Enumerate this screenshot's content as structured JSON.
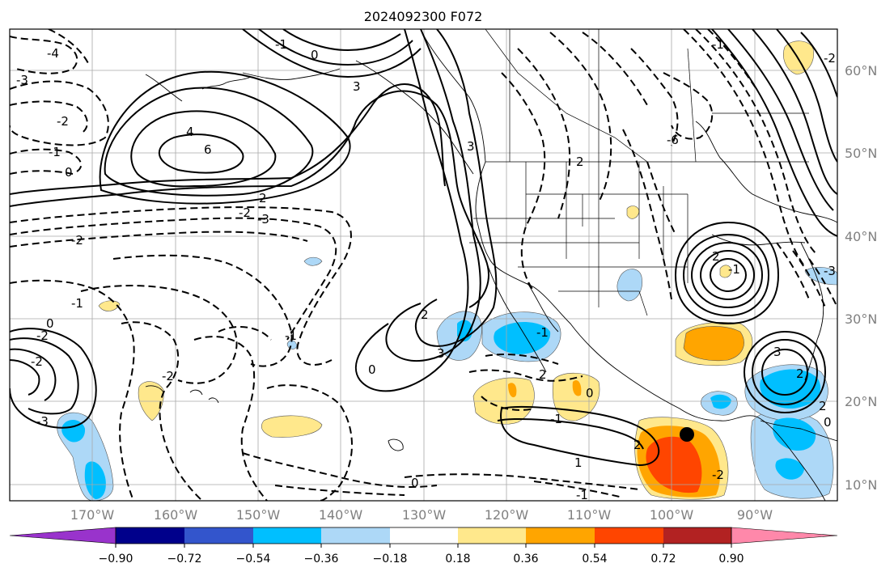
{
  "title": "2024092300 F072",
  "map": {
    "lat_labels": [
      "60°N",
      "50°N",
      "40°N",
      "30°N",
      "20°N",
      "10°N"
    ],
    "lon_labels": [
      "170°W",
      "160°W",
      "150°W",
      "140°W",
      "130°W",
      "120°W",
      "110°W",
      "100°W",
      "90°W"
    ],
    "gridline_color": "#a9a9a9",
    "coastline_color": "#000000",
    "contour_color": "#000000",
    "contour_labels": [
      "-4",
      "-3",
      "-2",
      "-1",
      "0",
      "0",
      "-1",
      "3",
      "4",
      "6",
      "-2",
      "2",
      "-2",
      "-3",
      "-2",
      "-1",
      "0",
      "-2",
      "-3",
      "-2",
      "-1",
      "0",
      "2",
      "3",
      "3",
      "2",
      "-1",
      "2",
      "-1",
      "-1",
      "-2",
      "2",
      "1",
      "0",
      "0",
      "2",
      "-3",
      "3",
      "2",
      "2",
      "-6",
      "-2",
      "0",
      "-1",
      "-1"
    ],
    "marker": {
      "name": "storm-center",
      "lon": -99.2,
      "lat": 15.8
    }
  },
  "colorbar": {
    "ticks": [
      "−0.90",
      "−0.72",
      "−0.54",
      "−0.36",
      "−0.18",
      "0.18",
      "0.36",
      "0.54",
      "0.72",
      "0.90"
    ],
    "colors": [
      "#9933cc",
      "#00008b",
      "#3355cc",
      "#00bfff",
      "#add8f7",
      "#ffffff",
      "#ffe88c",
      "#ffa500",
      "#ff4500",
      "#b22222",
      "#ff88aa"
    ]
  }
}
